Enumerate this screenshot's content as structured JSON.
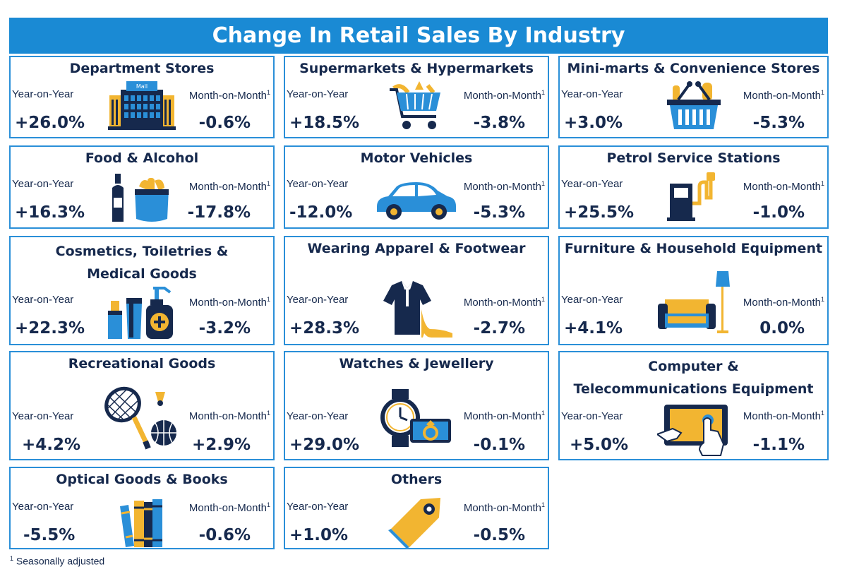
{
  "title": "Change In Retail Sales By Industry",
  "labels": {
    "yoy": "Year-on-Year",
    "mom": "Month-on-Month",
    "sup": "1"
  },
  "colors": {
    "accent": "#1a8ad4",
    "navy": "#16294d",
    "gold": "#f2b531",
    "blue": "#2a8fd8"
  },
  "cards": [
    {
      "name": "Department Stores",
      "yoy": "+26.0%",
      "mom": "-0.6%",
      "icon": "mall-icon",
      "icon_text": "Mall"
    },
    {
      "name": "Supermarkets & Hypermarkets",
      "yoy": "+18.5%",
      "mom": "-3.8%",
      "icon": "shopping-cart-icon"
    },
    {
      "name": "Mini-marts & Convenience Stores",
      "yoy": "+3.0%",
      "mom": "-5.3%",
      "icon": "shopping-basket-icon"
    },
    {
      "name": "Food & Alcohol",
      "yoy": "+16.3%",
      "mom": "-17.8%",
      "icon": "food-alcohol-icon"
    },
    {
      "name": "Motor Vehicles",
      "yoy": "-12.0%",
      "mom": "-5.3%",
      "icon": "car-icon"
    },
    {
      "name": "Petrol Service Stations",
      "yoy": "+25.5%",
      "mom": "-1.0%",
      "icon": "fuel-pump-icon"
    },
    {
      "name_line1": "Cosmetics, Toiletries &",
      "name_line2": "Medical Goods",
      "yoy": "+22.3%",
      "mom": "-3.2%",
      "icon": "cosmetics-icon"
    },
    {
      "name": "Wearing Apparel & Footwear",
      "yoy": "+28.3%",
      "mom": "-2.7%",
      "icon": "apparel-icon"
    },
    {
      "name": "Furniture & Household Equipment",
      "yoy": "+4.1%",
      "mom": "0.0%",
      "icon": "sofa-lamp-icon"
    },
    {
      "name": "Recreational Goods",
      "yoy": "+4.2%",
      "mom": "+2.9%",
      "icon": "sports-icon"
    },
    {
      "name": "Watches & Jewellery",
      "yoy": "+29.0%",
      "mom": "-0.1%",
      "icon": "watch-ring-icon"
    },
    {
      "name_line1": "Computer &",
      "name_line2": "Telecommunications Equipment",
      "yoy": "+5.0%",
      "mom": "-1.1%",
      "icon": "tablet-icon"
    },
    {
      "name": "Optical Goods & Books",
      "yoy": "-5.5%",
      "mom": "-0.6%",
      "icon": "books-icon"
    },
    {
      "name": "Others",
      "yoy": "+1.0%",
      "mom": "-0.5%",
      "icon": "price-tag-icon"
    }
  ],
  "footnote": {
    "sup": "1",
    "text": "Seasonally adjusted"
  }
}
